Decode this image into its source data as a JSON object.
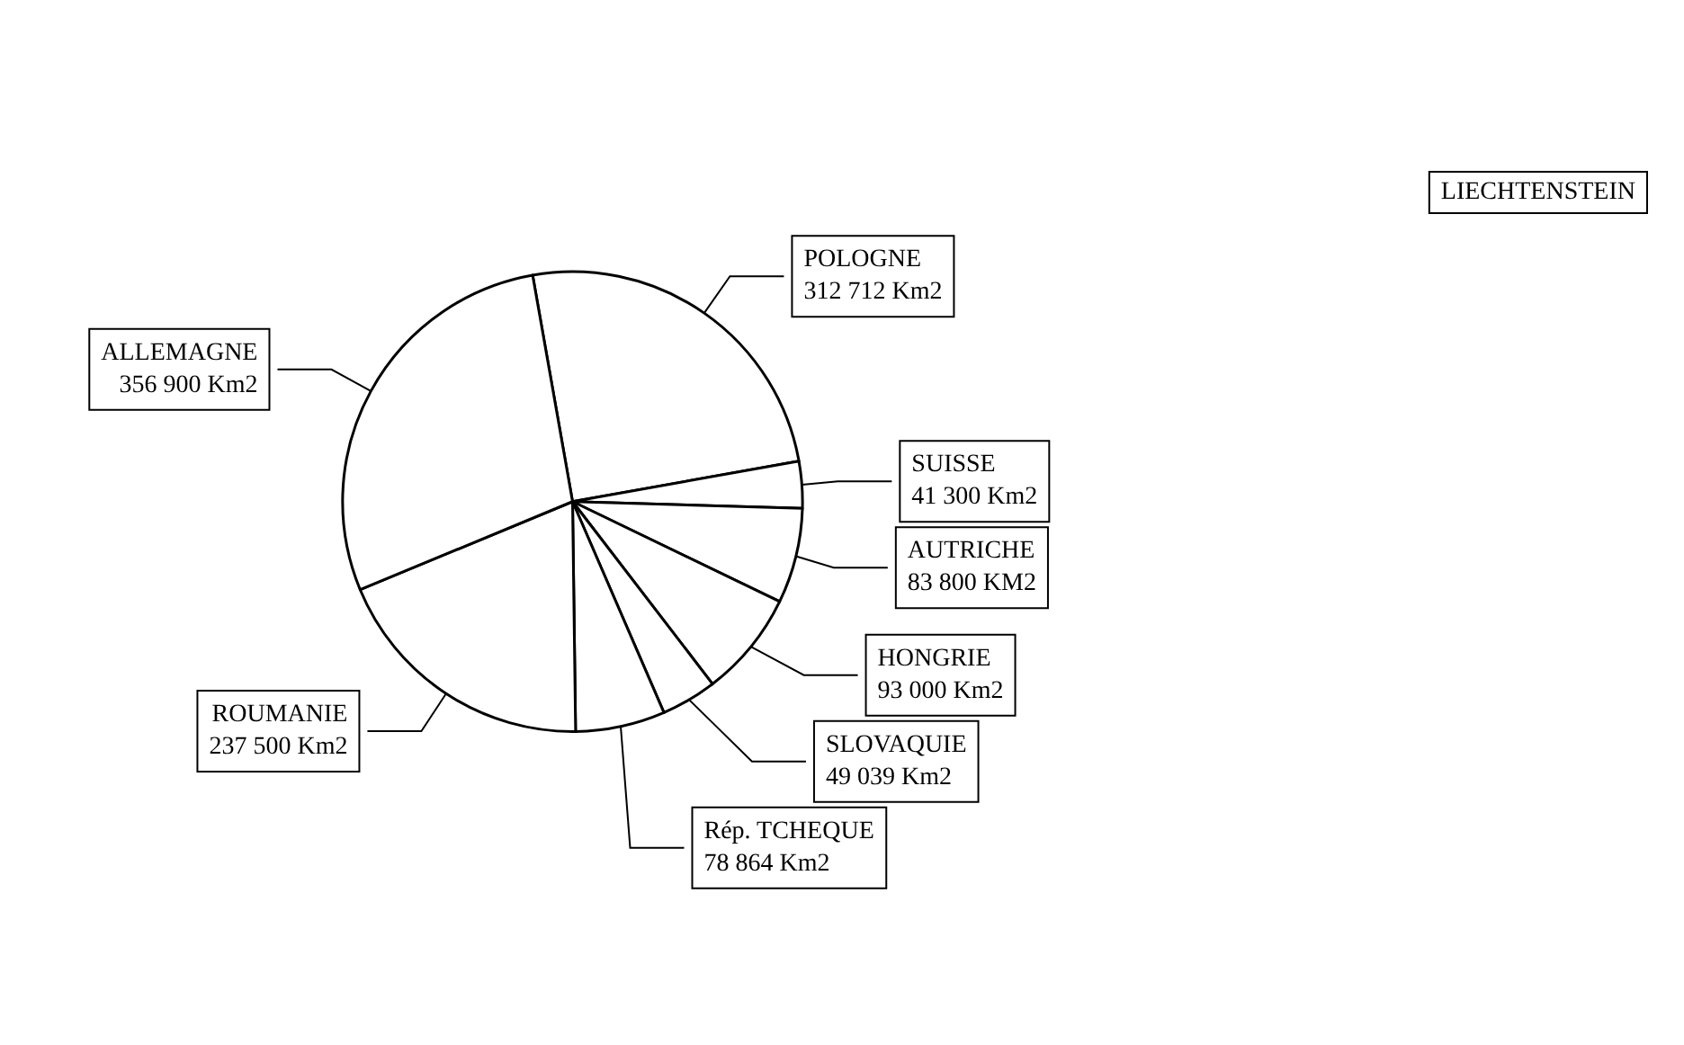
{
  "chart_data": {
    "type": "pie",
    "categories": [
      "POLOGNE",
      "LIECHTENSTEIN",
      "SUISSE",
      "AUTRICHE",
      "HONGRIE",
      "SLOVAQUIE",
      "Rép. TCHEQUE",
      "ROUMANIE",
      "ALLEMAGNE"
    ],
    "values": [
      312712,
      null,
      41300,
      83800,
      93000,
      49039,
      78864,
      237500,
      356900
    ],
    "value_labels": [
      "312 712 Km2",
      null,
      "41 300 Km2",
      "83 800 KM2",
      "93 000 Km2",
      "49 039 Km2",
      "78 864 Km2",
      "237 500 Km2",
      "356 900 Km2"
    ],
    "colors": [
      "#ffffff",
      "#ffffff",
      "#ffffff",
      "#ffffff",
      "#ffffff",
      "#ffffff",
      "#ffffff",
      "#ffffff",
      "#ffffff"
    ]
  }
}
